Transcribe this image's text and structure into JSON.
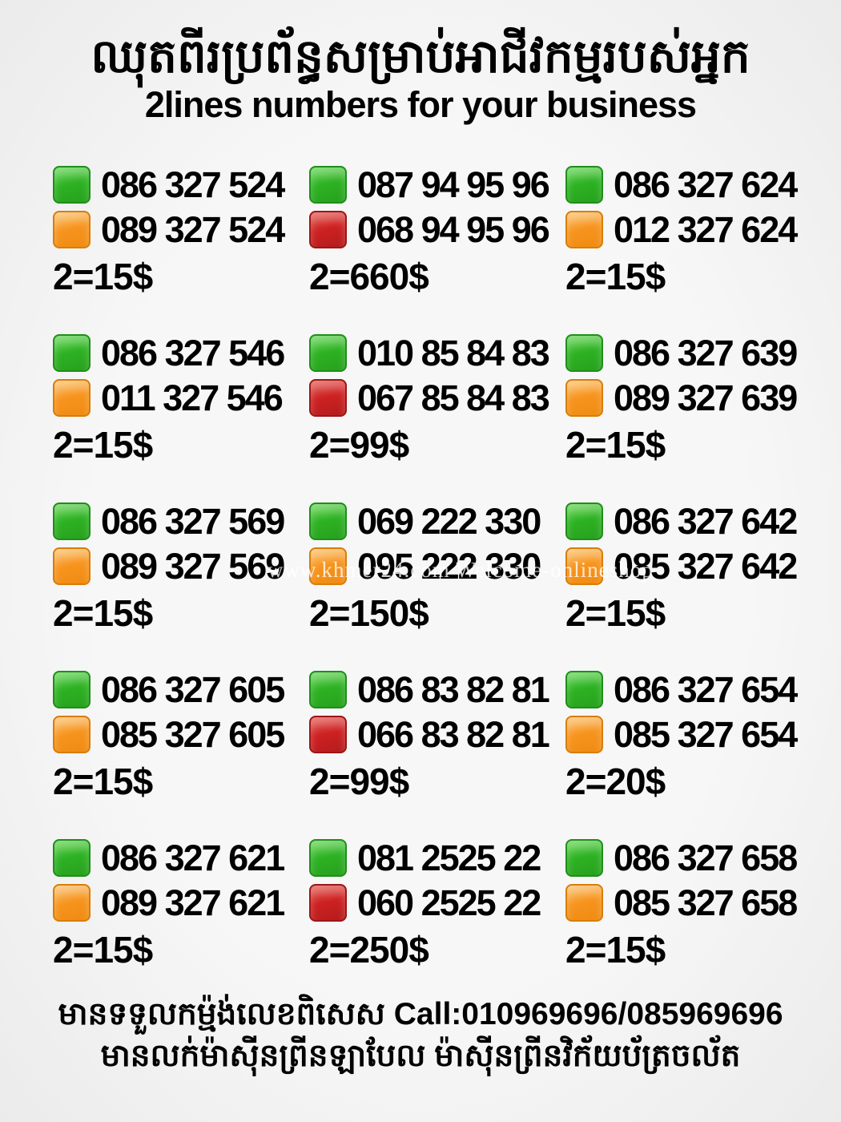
{
  "header": {
    "title_khmer": "ឈុតពីរប្រព័ន្ធសម្រាប់អាជីវកម្មរបស់អ្នក",
    "subtitle": "2lines numbers for your business"
  },
  "watermark": "www.khmer24.com Welcome-onlineshop",
  "legend_colors": {
    "green": "#2db223",
    "orange": "#f7941e",
    "red": "#cd2122"
  },
  "grid": {
    "cells": [
      {
        "line1": {
          "color": "green",
          "number": "086 327 524"
        },
        "line2": {
          "color": "orange",
          "number": "089 327 524"
        },
        "price": "2=15$"
      },
      {
        "line1": {
          "color": "green",
          "number": "087 94 95 96"
        },
        "line2": {
          "color": "red",
          "number": "068 94 95 96"
        },
        "price": "2=660$"
      },
      {
        "line1": {
          "color": "green",
          "number": "086 327 624"
        },
        "line2": {
          "color": "orange",
          "number": "012 327 624"
        },
        "price": "2=15$"
      },
      {
        "line1": {
          "color": "green",
          "number": "086 327 546"
        },
        "line2": {
          "color": "orange",
          "number": "011 327 546"
        },
        "price": "2=15$"
      },
      {
        "line1": {
          "color": "green",
          "number": "010 85 84 83"
        },
        "line2": {
          "color": "red",
          "number": "067 85 84 83"
        },
        "price": "2=99$"
      },
      {
        "line1": {
          "color": "green",
          "number": "086 327 639"
        },
        "line2": {
          "color": "orange",
          "number": "089 327 639"
        },
        "price": "2=15$"
      },
      {
        "line1": {
          "color": "green",
          "number": "086 327 569"
        },
        "line2": {
          "color": "orange",
          "number": "089 327 569"
        },
        "price": "2=15$"
      },
      {
        "line1": {
          "color": "green",
          "number": "069 222 330"
        },
        "line2": {
          "color": "orange",
          "number": "095 222 330"
        },
        "price": "2=150$"
      },
      {
        "line1": {
          "color": "green",
          "number": "086 327 642"
        },
        "line2": {
          "color": "orange",
          "number": "085 327 642"
        },
        "price": "2=15$"
      },
      {
        "line1": {
          "color": "green",
          "number": "086 327 605"
        },
        "line2": {
          "color": "orange",
          "number": "085 327 605"
        },
        "price": "2=15$"
      },
      {
        "line1": {
          "color": "green",
          "number": "086 83 82 81"
        },
        "line2": {
          "color": "red",
          "number": "066 83 82 81"
        },
        "price": "2=99$"
      },
      {
        "line1": {
          "color": "green",
          "number": "086 327 654"
        },
        "line2": {
          "color": "orange",
          "number": "085 327 654"
        },
        "price": "2=20$"
      },
      {
        "line1": {
          "color": "green",
          "number": "086 327 621"
        },
        "line2": {
          "color": "orange",
          "number": "089 327 621"
        },
        "price": "2=15$"
      },
      {
        "line1": {
          "color": "green",
          "number": "081 2525 22"
        },
        "line2": {
          "color": "red",
          "number": "060 2525 22"
        },
        "price": "2=250$"
      },
      {
        "line1": {
          "color": "green",
          "number": "086 327 658"
        },
        "line2": {
          "color": "orange",
          "number": "085 327 658"
        },
        "price": "2=15$"
      }
    ]
  },
  "footer": {
    "line1_khmer": "មានទទួលកម្ម៉ង់លេខពិសេស",
    "line1_call": "Call:010969696/085969696",
    "line2_khmer": "មានលក់ម៉ាស៊ីនព្រីនឡាបែល ម៉ាស៊ីនព្រីនវិក័យប័ត្រចល័ត"
  }
}
